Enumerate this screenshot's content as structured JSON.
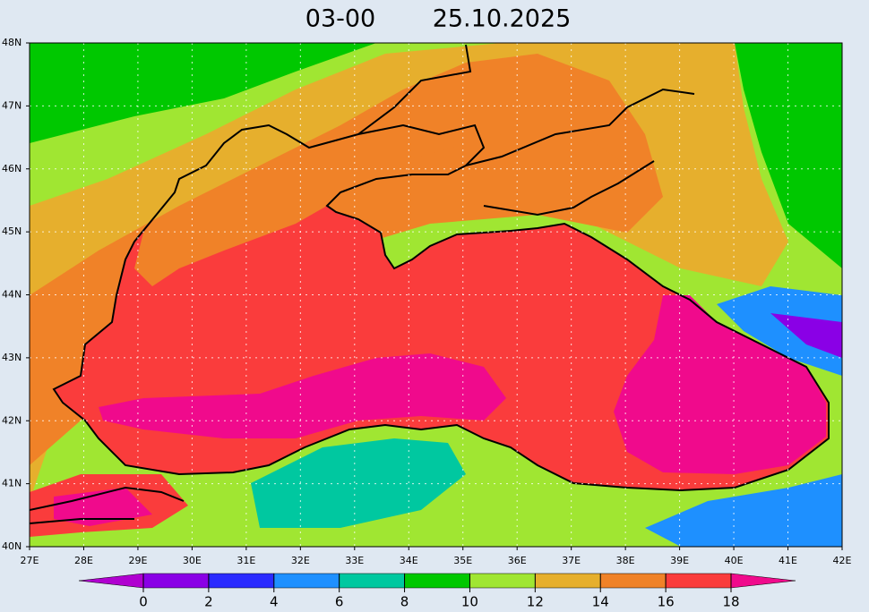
{
  "title": {
    "time": "03-00",
    "date": "25.10.2025"
  },
  "map": {
    "lat_labels": [
      "40N",
      "41N",
      "42N",
      "43N",
      "44N",
      "45N",
      "46N",
      "47N",
      "48N"
    ],
    "lon_labels": [
      "27E",
      "28E",
      "29E",
      "30E",
      "31E",
      "32E",
      "33E",
      "34E",
      "35E",
      "36E",
      "37E",
      "38E",
      "39E",
      "40E",
      "41E",
      "42E"
    ]
  },
  "colorbar": {
    "ticks": [
      0,
      2,
      4,
      6,
      8,
      10,
      12,
      14,
      16,
      18
    ],
    "colors": [
      "#b000d0",
      "#8a00e6",
      "#2a2aff",
      "#1e90ff",
      "#00c8a0",
      "#00c800",
      "#a0e632",
      "#e6af2d",
      "#f08228",
      "#fa3c3c",
      "#f00a8c"
    ]
  }
}
